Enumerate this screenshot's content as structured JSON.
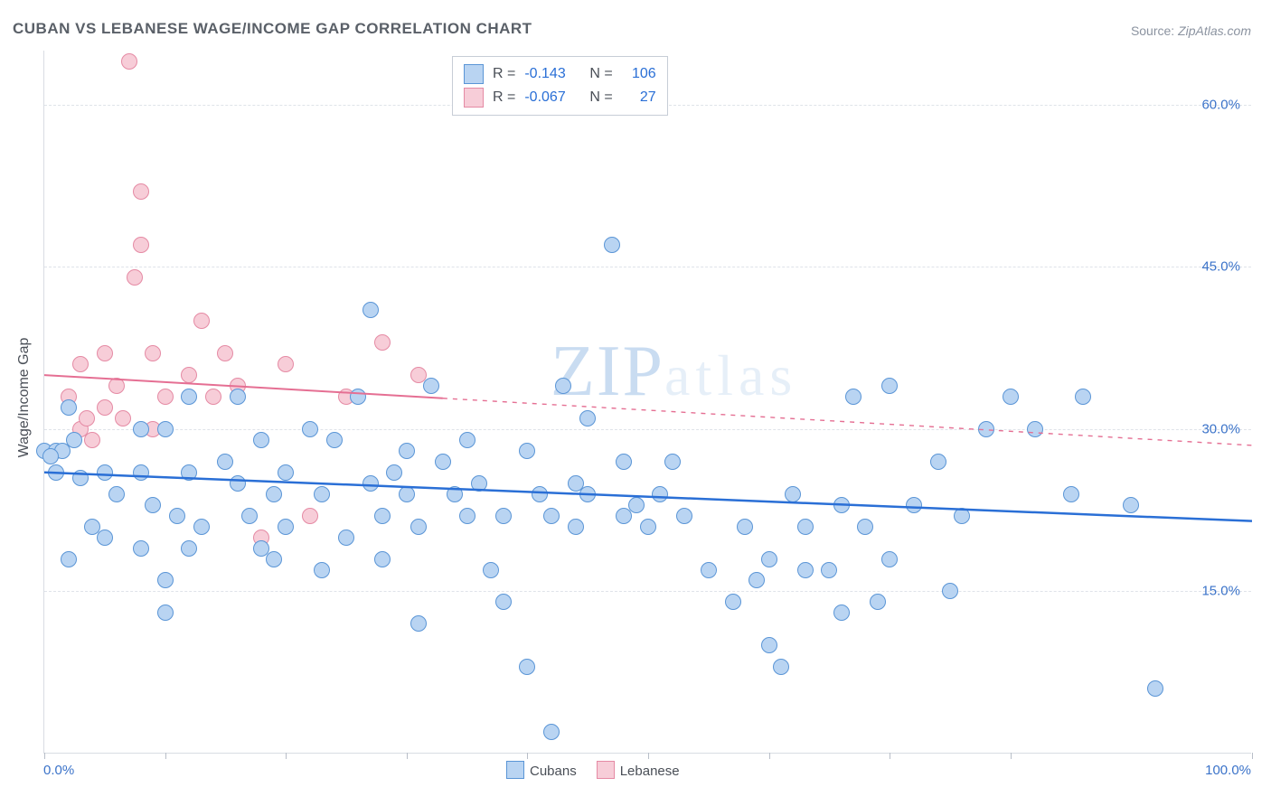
{
  "title": "CUBAN VS LEBANESE WAGE/INCOME GAP CORRELATION CHART",
  "source_prefix": "Source: ",
  "source_name": "ZipAtlas.com",
  "y_axis_title": "Wage/Income Gap",
  "watermark_a": "ZIP",
  "watermark_b": "atlas",
  "chart": {
    "type": "scatter",
    "xlim": [
      0,
      100
    ],
    "ylim": [
      0,
      65
    ],
    "y_ticks": [
      15.0,
      30.0,
      45.0,
      60.0
    ],
    "y_tick_labels": [
      "15.0%",
      "30.0%",
      "45.0%",
      "60.0%"
    ],
    "x_ticks": [
      0,
      10,
      20,
      30,
      40,
      50,
      60,
      70,
      80,
      100
    ],
    "x_end_labels": [
      "0.0%",
      "100.0%"
    ],
    "background_color": "#ffffff",
    "grid_color": "#dfe3e9",
    "axis_color": "#d9dde3",
    "tick_color": "#b8bec8",
    "label_color": "#3b73c9",
    "marker_radius": 9,
    "marker_border": 1.5
  },
  "series": {
    "cubans": {
      "label": "Cubans",
      "fill": "#b9d4f2",
      "stroke": "#5a95d6",
      "trend": {
        "y_at_x0": 26.0,
        "y_at_x100": 21.5,
        "color": "#2a6fd6",
        "width": 2.5,
        "dash_to": 100
      },
      "R": "-0.143",
      "N": "106",
      "points": [
        [
          0,
          28
        ],
        [
          1,
          28
        ],
        [
          1.5,
          28
        ],
        [
          0.5,
          27.5
        ],
        [
          1,
          26
        ],
        [
          3,
          25.5
        ],
        [
          5,
          26
        ],
        [
          6,
          24
        ],
        [
          2.5,
          29
        ],
        [
          2,
          32
        ],
        [
          2,
          18
        ],
        [
          4,
          21
        ],
        [
          5,
          20
        ],
        [
          8,
          26
        ],
        [
          8,
          30
        ],
        [
          9,
          23
        ],
        [
          10,
          30
        ],
        [
          11,
          22
        ],
        [
          12,
          33
        ],
        [
          12,
          26
        ],
        [
          8,
          19
        ],
        [
          12,
          19
        ],
        [
          13,
          21
        ],
        [
          10,
          16
        ],
        [
          15,
          27
        ],
        [
          16,
          33
        ],
        [
          16,
          25
        ],
        [
          17,
          22
        ],
        [
          18,
          29
        ],
        [
          18,
          19
        ],
        [
          19,
          24
        ],
        [
          19,
          18
        ],
        [
          10,
          13
        ],
        [
          20,
          26
        ],
        [
          20,
          21
        ],
        [
          22,
          30
        ],
        [
          23,
          24
        ],
        [
          23,
          17
        ],
        [
          24,
          29
        ],
        [
          25,
          20
        ],
        [
          26,
          33
        ],
        [
          27,
          41
        ],
        [
          27,
          25
        ],
        [
          28,
          22
        ],
        [
          28,
          18
        ],
        [
          29,
          26
        ],
        [
          30,
          28
        ],
        [
          30,
          24
        ],
        [
          31,
          21
        ],
        [
          31,
          12
        ],
        [
          32,
          34
        ],
        [
          33,
          27
        ],
        [
          34,
          24
        ],
        [
          35,
          22
        ],
        [
          35,
          29
        ],
        [
          36,
          25
        ],
        [
          37,
          17
        ],
        [
          38,
          22
        ],
        [
          38,
          14
        ],
        [
          40,
          28
        ],
        [
          40,
          8
        ],
        [
          41,
          24
        ],
        [
          42,
          22
        ],
        [
          42,
          2
        ],
        [
          43,
          34
        ],
        [
          44,
          21
        ],
        [
          44,
          25
        ],
        [
          45,
          31
        ],
        [
          45,
          24
        ],
        [
          47,
          47
        ],
        [
          48,
          22
        ],
        [
          48,
          27
        ],
        [
          49,
          23
        ],
        [
          50,
          21
        ],
        [
          51,
          24
        ],
        [
          52,
          27
        ],
        [
          53,
          22
        ],
        [
          55,
          17
        ],
        [
          57,
          14
        ],
        [
          58,
          21
        ],
        [
          59,
          16
        ],
        [
          60,
          18
        ],
        [
          60,
          10
        ],
        [
          61,
          8
        ],
        [
          62,
          24
        ],
        [
          63,
          17
        ],
        [
          63,
          21
        ],
        [
          65,
          17
        ],
        [
          66,
          23
        ],
        [
          67,
          33
        ],
        [
          68,
          21
        ],
        [
          69,
          14
        ],
        [
          70,
          18
        ],
        [
          70,
          34
        ],
        [
          72,
          23
        ],
        [
          74,
          27
        ],
        [
          75,
          15
        ],
        [
          76,
          22
        ],
        [
          78,
          30
        ],
        [
          80,
          33
        ],
        [
          82,
          30
        ],
        [
          85,
          24
        ],
        [
          86,
          33
        ],
        [
          90,
          23
        ],
        [
          92,
          6
        ],
        [
          66,
          13
        ]
      ]
    },
    "lebanese": {
      "label": "Lebanese",
      "fill": "#f7cdd8",
      "stroke": "#e58aa4",
      "trend": {
        "y_at_x0": 35.0,
        "y_at_x100": 28.5,
        "color": "#e56f93",
        "width": 2,
        "solid_to": 33,
        "dash_to": 100
      },
      "R": "-0.067",
      "N": "27",
      "points": [
        [
          2,
          33
        ],
        [
          3,
          30
        ],
        [
          3,
          36
        ],
        [
          3.5,
          31
        ],
        [
          4,
          29
        ],
        [
          5,
          32
        ],
        [
          5,
          37
        ],
        [
          6,
          34
        ],
        [
          6.5,
          31
        ],
        [
          7,
          64
        ],
        [
          7.5,
          44
        ],
        [
          8,
          47
        ],
        [
          8,
          52
        ],
        [
          9,
          37
        ],
        [
          9,
          30
        ],
        [
          10,
          33
        ],
        [
          12,
          35
        ],
        [
          13,
          40
        ],
        [
          14,
          33
        ],
        [
          15,
          37
        ],
        [
          16,
          34
        ],
        [
          18,
          20
        ],
        [
          20,
          36
        ],
        [
          22,
          22
        ],
        [
          25,
          33
        ],
        [
          28,
          38
        ],
        [
          31,
          35
        ]
      ]
    }
  },
  "stats_box": {
    "rows": [
      {
        "swatch": "cubans",
        "R_label": "R =",
        "R": "-0.143",
        "N_label": "N =",
        "N": "106"
      },
      {
        "swatch": "lebanese",
        "R_label": "R =",
        "R": "-0.067",
        "N_label": "N =",
        "27": "27",
        "N": "27"
      }
    ]
  },
  "legend_bottom": [
    {
      "swatch": "cubans",
      "label": "Cubans"
    },
    {
      "swatch": "lebanese",
      "label": "Lebanese"
    }
  ]
}
